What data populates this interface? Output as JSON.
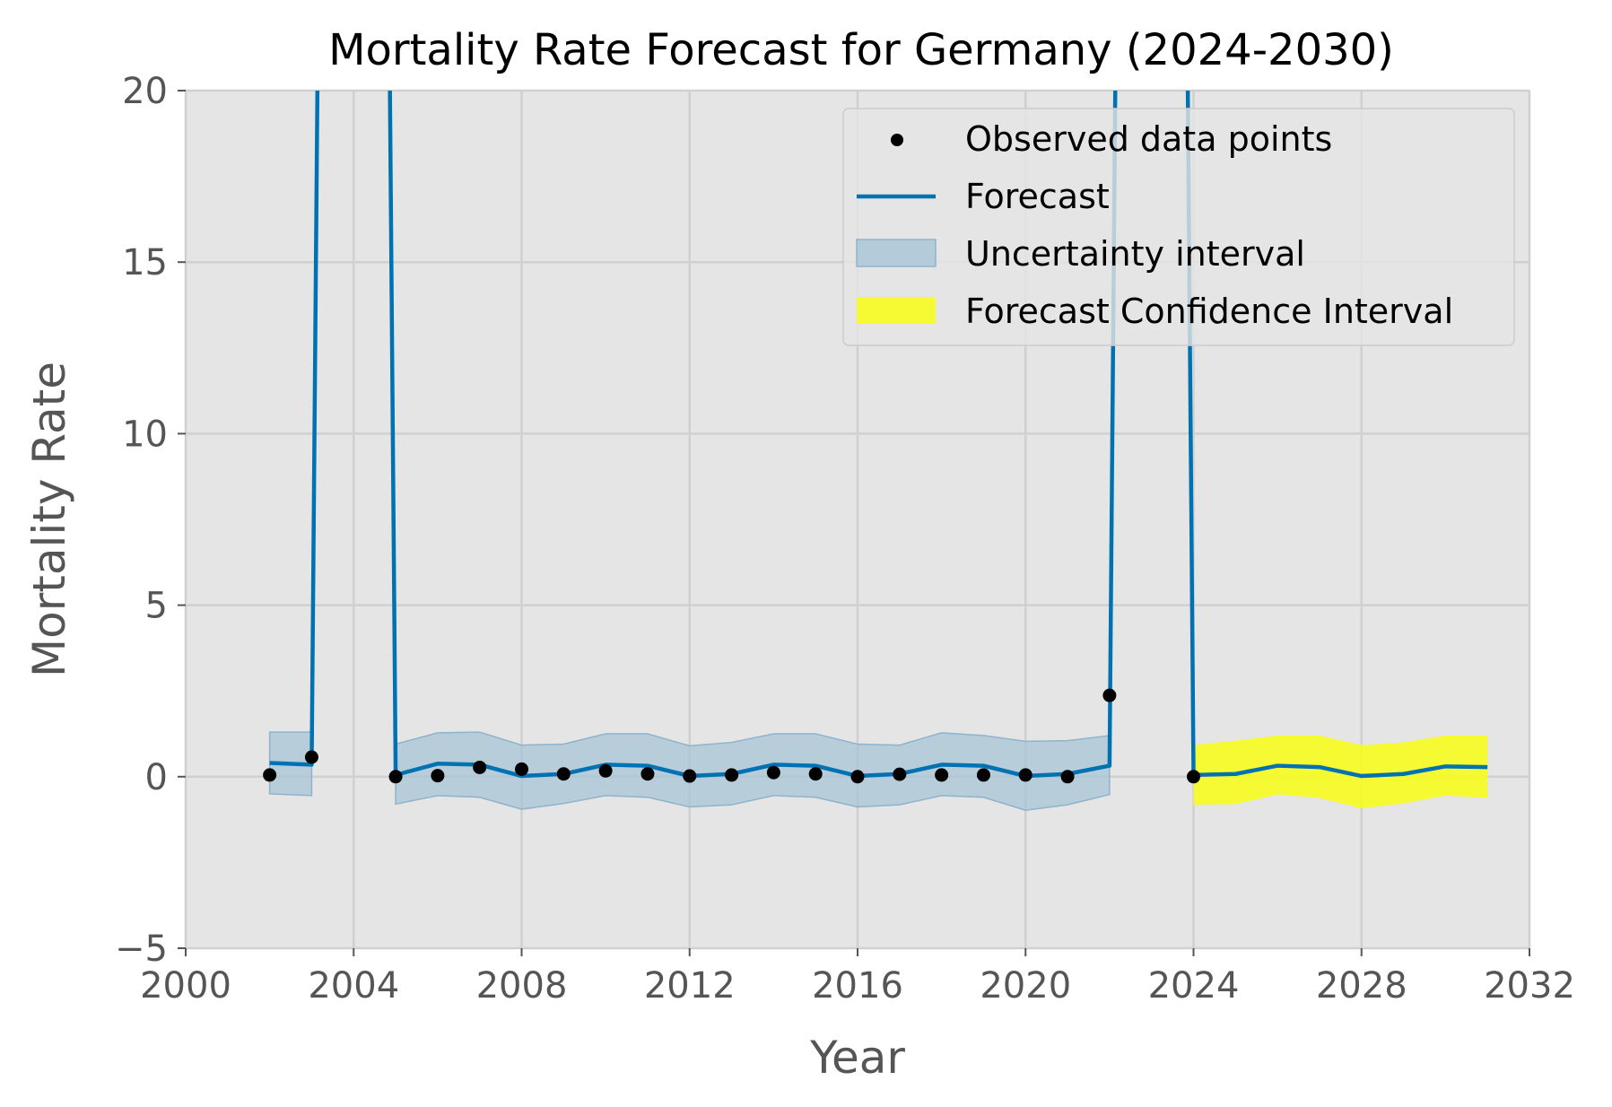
{
  "chart_data": {
    "type": "line",
    "title": "Mortality Rate Forecast for Germany (2024-2030)",
    "xlabel": "Year",
    "ylabel": "Mortality Rate",
    "xlim": [
      2000,
      2032
    ],
    "ylim": [
      -5,
      20
    ],
    "xticks": [
      2000,
      2004,
      2008,
      2012,
      2016,
      2020,
      2024,
      2028,
      2032
    ],
    "xtick_labels": [
      "2000",
      "2004",
      "2008",
      "2012",
      "2016",
      "2020",
      "2024",
      "2028",
      "2032"
    ],
    "yticks": [
      -5,
      0,
      5,
      10,
      15,
      20
    ],
    "ytick_labels": [
      "−5",
      "0",
      "5",
      "10",
      "15",
      "20"
    ],
    "grid": true,
    "legend_position": "top-right",
    "legend": {
      "observed": "Observed data points",
      "forecast": "Forecast",
      "uncertainty": "Uncertainty interval",
      "confidence": "Forecast Confidence Interval"
    },
    "colors": {
      "background": "#e5e5e5",
      "grid": "#d0d0d0",
      "forecast": "#0072b2",
      "uncertainty": "#a7c4d6",
      "confidence": "#f7fc1e",
      "observed": "#000000",
      "axis_text": "#555555"
    },
    "observed": {
      "x": [
        2002,
        2003,
        2005,
        2006,
        2007,
        2008,
        2009,
        2010,
        2011,
        2012,
        2013,
        2014,
        2015,
        2016,
        2017,
        2018,
        2019,
        2020,
        2021,
        2022,
        2024
      ],
      "y": [
        0.05,
        0.57,
        0.0,
        0.03,
        0.27,
        0.22,
        0.08,
        0.17,
        0.08,
        0.02,
        0.05,
        0.12,
        0.08,
        0.0,
        0.07,
        0.05,
        0.05,
        0.05,
        0.0,
        2.37,
        0.0
      ]
    },
    "forecast": {
      "x": [
        2002,
        2003,
        2003.15,
        2004.85,
        2005,
        2006,
        2007,
        2008,
        2009,
        2010,
        2011,
        2012,
        2013,
        2014,
        2015,
        2016,
        2017,
        2018,
        2019,
        2020,
        2021,
        2022,
        2022.15,
        2023.85,
        2024,
        2025,
        2026,
        2027,
        2028,
        2029,
        2030,
        2031
      ],
      "y": [
        0.4,
        0.35,
        22,
        22,
        0.05,
        0.38,
        0.35,
        0.02,
        0.08,
        0.35,
        0.32,
        0.02,
        0.08,
        0.35,
        0.32,
        0.02,
        0.08,
        0.35,
        0.32,
        0.02,
        0.08,
        0.32,
        22,
        22,
        0.05,
        0.08,
        0.32,
        0.28,
        0.02,
        0.08,
        0.3,
        0.28
      ]
    },
    "uncertainty_interval": [
      {
        "x": [
          2002,
          2003
        ],
        "lower": [
          -0.5,
          -0.55
        ],
        "upper": [
          1.3,
          1.3
        ]
      },
      {
        "x": [
          2005,
          2006,
          2007,
          2008,
          2009,
          2010,
          2011,
          2012,
          2013,
          2014,
          2015,
          2016,
          2017,
          2018,
          2019,
          2020,
          2021,
          2022
        ],
        "lower": [
          -0.8,
          -0.55,
          -0.6,
          -0.95,
          -0.78,
          -0.55,
          -0.6,
          -0.88,
          -0.82,
          -0.55,
          -0.6,
          -0.88,
          -0.82,
          -0.55,
          -0.6,
          -0.98,
          -0.82,
          -0.52
        ],
        "upper": [
          0.95,
          1.28,
          1.3,
          0.92,
          0.95,
          1.25,
          1.25,
          0.9,
          1.0,
          1.25,
          1.25,
          0.95,
          0.92,
          1.28,
          1.2,
          1.03,
          1.05,
          1.2
        ]
      }
    ],
    "forecast_confidence_interval": {
      "x": [
        2024,
        2025,
        2026,
        2027,
        2028,
        2029,
        2030,
        2031
      ],
      "lower": [
        -0.82,
        -0.8,
        -0.52,
        -0.62,
        -0.92,
        -0.78,
        -0.55,
        -0.62
      ],
      "upper": [
        0.92,
        1.05,
        1.2,
        1.2,
        0.92,
        1.0,
        1.2,
        1.2
      ]
    }
  }
}
